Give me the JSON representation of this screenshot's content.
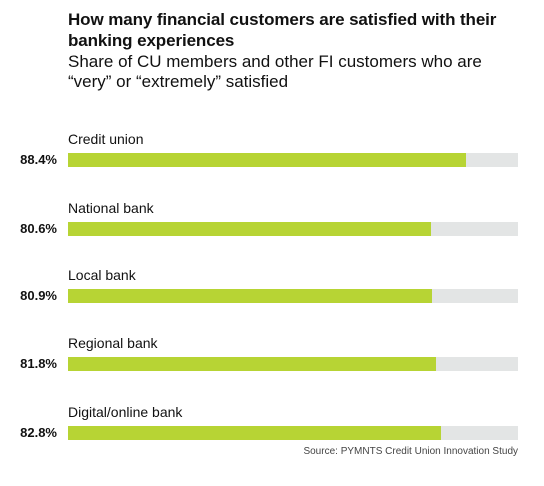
{
  "title": "How many financial customers are satisfied with their banking experiences",
  "subtitle": "Share of CU members and other FI customers who are “very” or “extremely” satisfied",
  "source": "Source: PYMNTS Credit Union Innovation Study",
  "colors": {
    "bar": "#b7d434",
    "track": "#e3e5e5",
    "text": "#111111"
  },
  "rows": [
    {
      "label": "Credit union",
      "value_text": "88.4%"
    },
    {
      "label": "National bank",
      "value_text": "80.6%"
    },
    {
      "label": "Local bank",
      "value_text": "80.9%"
    },
    {
      "label": "Regional bank",
      "value_text": "81.8%"
    },
    {
      "label": "Digital/online bank",
      "value_text": "82.8%"
    }
  ],
  "chart_data": {
    "type": "bar",
    "orientation": "horizontal",
    "title": "How many financial customers are satisfied with their banking experiences",
    "subtitle": "Share of CU members and other FI customers who are “very” or “extremely” satisfied",
    "categories": [
      "Credit union",
      "National bank",
      "Local bank",
      "Regional bank",
      "Digital/online bank"
    ],
    "values": [
      88.4,
      80.6,
      80.9,
      81.8,
      82.8
    ],
    "unit": "%",
    "xlim": [
      0,
      100
    ],
    "grid": false,
    "legend": "none"
  }
}
